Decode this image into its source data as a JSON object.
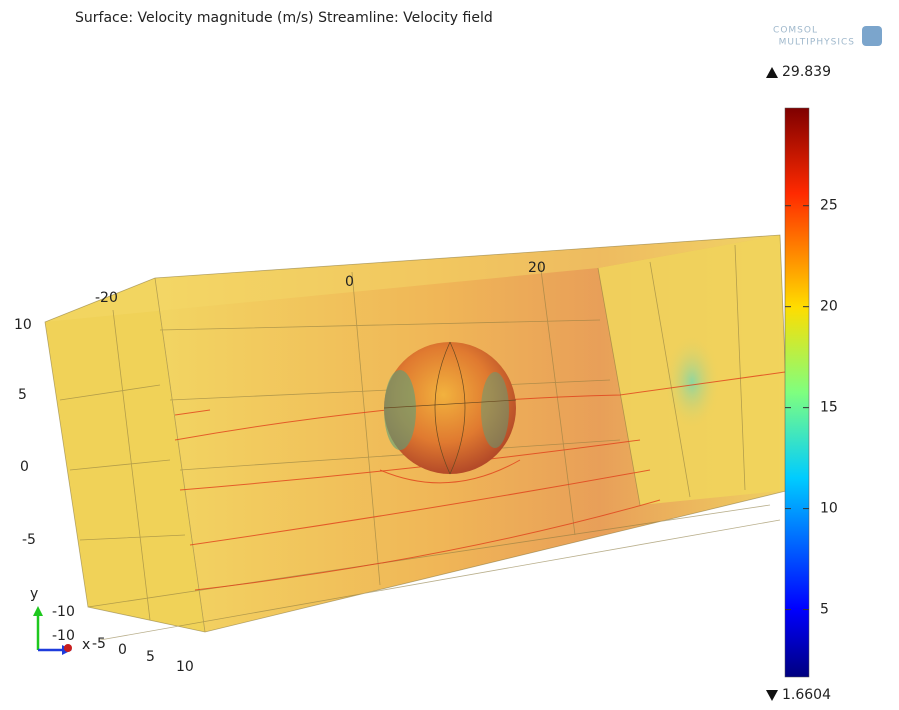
{
  "title": "Surface: Velocity magnitude (m/s) Streamline: Velocity field",
  "logo": {
    "line1": "COMSOL",
    "line2": "MULTIPHYSICS"
  },
  "colorbar": {
    "max": 29.839,
    "min": 1.6604,
    "ticks": [
      5,
      10,
      15,
      20,
      25
    ]
  },
  "axes": {
    "y_ticks": [
      10,
      5,
      0,
      -5,
      -10
    ],
    "x_ticks": [
      -20,
      0,
      20
    ],
    "z_ticks": [
      -10,
      -5,
      0,
      5,
      10
    ],
    "triad": {
      "y": "y",
      "x": "x"
    }
  }
}
